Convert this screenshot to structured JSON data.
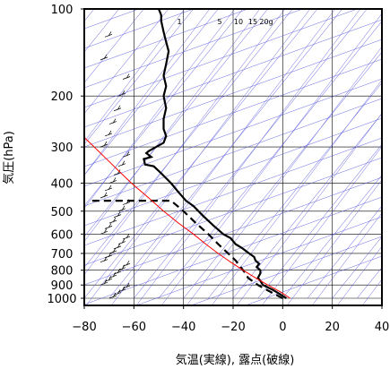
{
  "chart_data": {
    "type": "line",
    "title": "",
    "xlabel": "気温(実線), 露点(破線)",
    "ylabel": "気圧(hPa)",
    "xlim": [
      -80,
      40
    ],
    "ylim_hPa": [
      1000,
      100
    ],
    "y_log_scale": true,
    "grid": true,
    "x_ticks": [
      "−80",
      "−60",
      "−40",
      "−20",
      "0",
      "20",
      "40"
    ],
    "x_tick_values": [
      -80,
      -60,
      -40,
      -20,
      0,
      20,
      40
    ],
    "y_ticks": [
      "100",
      "200",
      "300",
      "400",
      "500",
      "600",
      "700",
      "800",
      "900",
      "1000"
    ],
    "y_tick_values": [
      100,
      200,
      300,
      400,
      500,
      600,
      700,
      800,
      900,
      1000
    ],
    "mixing_ratio_labels": [
      "1",
      "5",
      "10",
      "15",
      "20g"
    ],
    "series": [
      {
        "kind": "temperature",
        "style": "solid",
        "color": "#000000",
        "points": [
          [
            1.5,
            1000
          ],
          [
            -1,
            970
          ],
          [
            -4,
            935
          ],
          [
            -8,
            900
          ],
          [
            -9,
            870
          ],
          [
            -10,
            850
          ],
          [
            -9,
            820
          ],
          [
            -9,
            800
          ],
          [
            -10.5,
            780
          ],
          [
            -9.5,
            760
          ],
          [
            -11,
            740
          ],
          [
            -11.5,
            720
          ],
          [
            -13.5,
            700
          ],
          [
            -16.5,
            670
          ],
          [
            -19,
            650
          ],
          [
            -21,
            620
          ],
          [
            -24,
            600
          ],
          [
            -28,
            560
          ],
          [
            -32,
            520
          ],
          [
            -36,
            480
          ],
          [
            -39,
            460
          ],
          [
            -42,
            430
          ],
          [
            -45,
            400
          ],
          [
            -49,
            370
          ],
          [
            -52,
            350
          ],
          [
            -55.5,
            345
          ],
          [
            -56,
            330
          ],
          [
            -53,
            325
          ],
          [
            -55,
            315
          ],
          [
            -54,
            310
          ],
          [
            -48,
            290
          ],
          [
            -47,
            275
          ],
          [
            -48,
            260
          ],
          [
            -48,
            240
          ],
          [
            -47,
            220
          ],
          [
            -48,
            200
          ],
          [
            -47,
            185
          ],
          [
            -48,
            170
          ],
          [
            -47,
            155
          ],
          [
            -46,
            140
          ],
          [
            -47,
            130
          ],
          [
            -48,
            120
          ],
          [
            -49,
            110
          ],
          [
            -49,
            105
          ],
          [
            -50,
            100
          ]
        ]
      },
      {
        "kind": "dewpoint",
        "style": "dashed",
        "color": "#000000",
        "points": [
          [
            0,
            1000
          ],
          [
            -3,
            970
          ],
          [
            -7,
            930
          ],
          [
            -10,
            900
          ],
          [
            -14,
            850
          ],
          [
            -15,
            820
          ],
          [
            -17,
            780
          ],
          [
            -19,
            740
          ],
          [
            -22,
            700
          ],
          [
            -26,
            650
          ],
          [
            -30,
            600
          ],
          [
            -35,
            550
          ],
          [
            -40,
            500
          ],
          [
            -45,
            460
          ],
          [
            -78,
            460
          ]
        ]
      },
      {
        "kind": "parcel",
        "style": "solid",
        "color": "#ff0000",
        "points": [
          [
            3,
            1000
          ],
          [
            -1,
            950
          ],
          [
            -6,
            900
          ],
          [
            -11,
            850
          ],
          [
            -16,
            800
          ],
          [
            -21,
            750
          ],
          [
            -26,
            700
          ],
          [
            -31,
            650
          ],
          [
            -36,
            600
          ],
          [
            -42,
            550
          ],
          [
            -48,
            500
          ],
          [
            -54,
            450
          ],
          [
            -61,
            400
          ],
          [
            -68,
            350
          ],
          [
            -76,
            300
          ],
          [
            -80,
            278
          ]
        ]
      }
    ],
    "wind_barbs": "present"
  },
  "colors": {
    "isotherm_grid": "#5555dd",
    "axis": "#000000",
    "grid": "#000000",
    "parcel": "#ff0000"
  }
}
